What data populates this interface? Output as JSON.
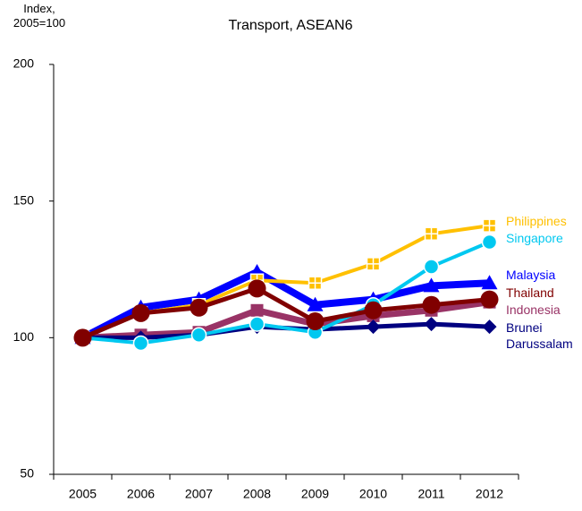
{
  "chart_data": {
    "type": "line",
    "title": "Transport, ASEAN6",
    "y_label": "Index, 2005=100",
    "categories": [
      "2005",
      "2006",
      "2007",
      "2008",
      "2009",
      "2010",
      "2011",
      "2012"
    ],
    "series": [
      {
        "name": "Philippines",
        "color": "#ffc000",
        "values": [
          100,
          109,
          112,
          121,
          120,
          127,
          138,
          141
        ]
      },
      {
        "name": "Singapore",
        "color": "#00c8f0",
        "values": [
          100,
          98,
          101,
          105,
          102,
          112,
          126,
          135
        ]
      },
      {
        "name": "Malaysia",
        "color": "#0000ff",
        "values": [
          100,
          111,
          114,
          124,
          112,
          114,
          119,
          120
        ]
      },
      {
        "name": "Thailand",
        "color": "#800000",
        "values": [
          100,
          109,
          111,
          118,
          106,
          110,
          112,
          114
        ]
      },
      {
        "name": "Indonesia",
        "color": "#993366",
        "values": [
          100,
          101,
          102,
          110,
          105,
          108,
          110,
          113
        ]
      },
      {
        "name": "Brunei Darussalam",
        "color": "#000080",
        "values": [
          100,
          100,
          101,
          104,
          103,
          104,
          105,
          104
        ]
      }
    ],
    "ylim": [
      50,
      200
    ],
    "yticks": [
      50,
      100,
      150,
      200
    ],
    "grid": false
  }
}
